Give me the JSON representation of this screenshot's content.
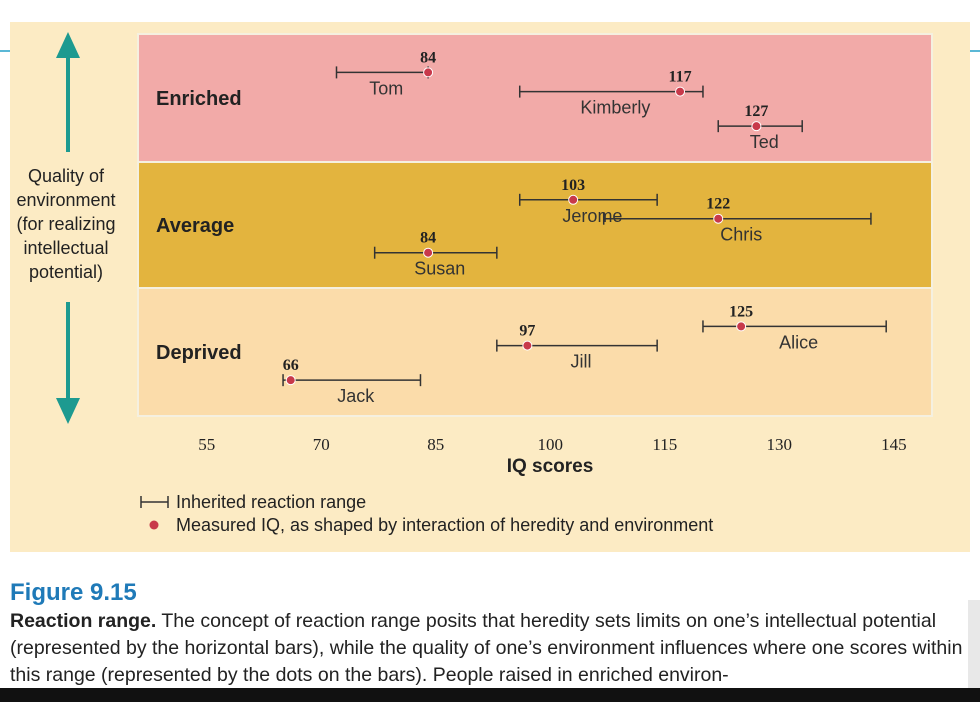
{
  "chart_data": {
    "type": "range-dot",
    "xlabel": "IQ scores",
    "xticks": [
      55,
      70,
      85,
      100,
      115,
      130,
      145
    ],
    "xlim": [
      46,
      150
    ],
    "ylabel_lines": [
      "Quality of",
      "environment",
      "(for realizing",
      "intellectual",
      "potential)"
    ],
    "rows": [
      {
        "label": "Enriched",
        "color": "#f2aaa8"
      },
      {
        "label": "Average",
        "color": "#e3b43e"
      },
      {
        "label": "Deprived",
        "color": "#fbdcaa"
      }
    ],
    "people": [
      {
        "name": "Tom",
        "row": 0,
        "range": [
          72,
          84
        ],
        "iq": 84,
        "lane": 0
      },
      {
        "name": "Kimberly",
        "row": 0,
        "range": [
          96,
          120
        ],
        "iq": 117,
        "lane": 1
      },
      {
        "name": "Ted",
        "row": 0,
        "range": [
          122,
          133
        ],
        "iq": 127,
        "lane": 2
      },
      {
        "name": "Susan",
        "row": 1,
        "range": [
          77,
          93
        ],
        "iq": 84,
        "lane": 2
      },
      {
        "name": "Jerome",
        "row": 1,
        "range": [
          96,
          114
        ],
        "iq": 103,
        "lane": 0
      },
      {
        "name": "Chris",
        "row": 1,
        "range": [
          107,
          142
        ],
        "iq": 122,
        "lane": 1
      },
      {
        "name": "Jack",
        "row": 2,
        "range": [
          65,
          83
        ],
        "iq": 66,
        "lane": 2
      },
      {
        "name": "Jill",
        "row": 2,
        "range": [
          93,
          114
        ],
        "iq": 97,
        "lane": 1
      },
      {
        "name": "Alice",
        "row": 2,
        "range": [
          120,
          144
        ],
        "iq": 125,
        "lane": 0
      }
    ],
    "legend": [
      {
        "type": "range",
        "label": "Inherited reaction range"
      },
      {
        "type": "dot",
        "label": "Measured IQ, as shaped by interaction of heredity and environment"
      }
    ],
    "dot_color": "#c8394a",
    "arrow_color": "#1d9a90"
  },
  "caption": {
    "figure_label": "Figure 9.15",
    "bold_lead": "Reaction range.",
    "text": " The concept of reaction range posits that heredity sets limits on one’s intellectual potential (represented by the horizontal bars), while the quality of one’s environment influences where one scores within this range (represented by the dots on the bars). People raised in enriched environ-"
  }
}
